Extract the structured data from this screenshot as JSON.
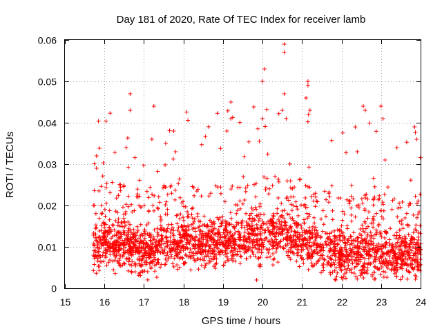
{
  "chart_data": {
    "type": "scatter",
    "title": "Day 181 of 2020, Rate Of TEC Index for receiver lamb",
    "xlabel": "GPS time / hours",
    "ylabel": "ROTI / TECUs",
    "xlim": [
      15,
      24
    ],
    "ylim": [
      0,
      0.06
    ],
    "x_ticks": [
      15,
      16,
      17,
      18,
      19,
      20,
      21,
      22,
      23,
      24
    ],
    "x_tick_labels": [
      "15",
      "16",
      "17",
      "18",
      "19",
      "20",
      "21",
      "22",
      "23",
      "24"
    ],
    "y_ticks": [
      0,
      0.01,
      0.02,
      0.03,
      0.04,
      0.05,
      0.06
    ],
    "y_tick_labels": [
      "0",
      "0.01",
      "0.02",
      "0.03",
      "0.04",
      "0.05",
      "0.06"
    ],
    "grid": true,
    "marker": "+",
    "series": [
      {
        "name": "ROTI",
        "color": "#ff0000",
        "x_range": [
          15.72,
          24.0
        ],
        "points_generated": 2600,
        "baseline_profile": [
          [
            15.72,
            0.009
          ],
          [
            16.0,
            0.011
          ],
          [
            16.5,
            0.01
          ],
          [
            17.0,
            0.009
          ],
          [
            17.5,
            0.01
          ],
          [
            18.0,
            0.011
          ],
          [
            18.5,
            0.01
          ],
          [
            19.0,
            0.011
          ],
          [
            19.5,
            0.012
          ],
          [
            20.0,
            0.012
          ],
          [
            20.5,
            0.013
          ],
          [
            21.0,
            0.011
          ],
          [
            21.5,
            0.009
          ],
          [
            22.0,
            0.008
          ],
          [
            22.5,
            0.008
          ],
          [
            23.0,
            0.008
          ],
          [
            23.5,
            0.008
          ],
          [
            24.0,
            0.008
          ]
        ],
        "notable_points": [
          [
            15.8,
            0.032
          ],
          [
            15.8,
            0.029
          ],
          [
            16.65,
            0.047
          ],
          [
            16.65,
            0.043
          ],
          [
            16.55,
            0.034
          ],
          [
            17.25,
            0.044
          ],
          [
            17.2,
            0.036
          ],
          [
            17.55,
            0.035
          ],
          [
            17.75,
            0.038
          ],
          [
            17.8,
            0.033
          ],
          [
            19.2,
            0.045
          ],
          [
            19.2,
            0.041
          ],
          [
            19.1,
            0.038
          ],
          [
            20.0,
            0.05
          ],
          [
            20.05,
            0.053
          ],
          [
            20.0,
            0.041
          ],
          [
            20.55,
            0.059
          ],
          [
            20.55,
            0.057
          ],
          [
            20.55,
            0.047
          ],
          [
            20.5,
            0.043
          ],
          [
            20.6,
            0.041
          ],
          [
            21.15,
            0.05
          ],
          [
            21.15,
            0.049
          ],
          [
            21.1,
            0.046
          ],
          [
            21.2,
            0.043
          ],
          [
            22.55,
            0.044
          ],
          [
            22.6,
            0.043
          ],
          [
            22.4,
            0.033
          ],
          [
            23.0,
            0.044
          ],
          [
            23.05,
            0.041
          ],
          [
            23.1,
            0.031
          ],
          [
            23.85,
            0.039
          ],
          [
            23.9,
            0.036
          ],
          [
            23.4,
            0.034
          ],
          [
            21.85,
            0.002
          ],
          [
            19.85,
            0.002
          ]
        ]
      }
    ]
  }
}
